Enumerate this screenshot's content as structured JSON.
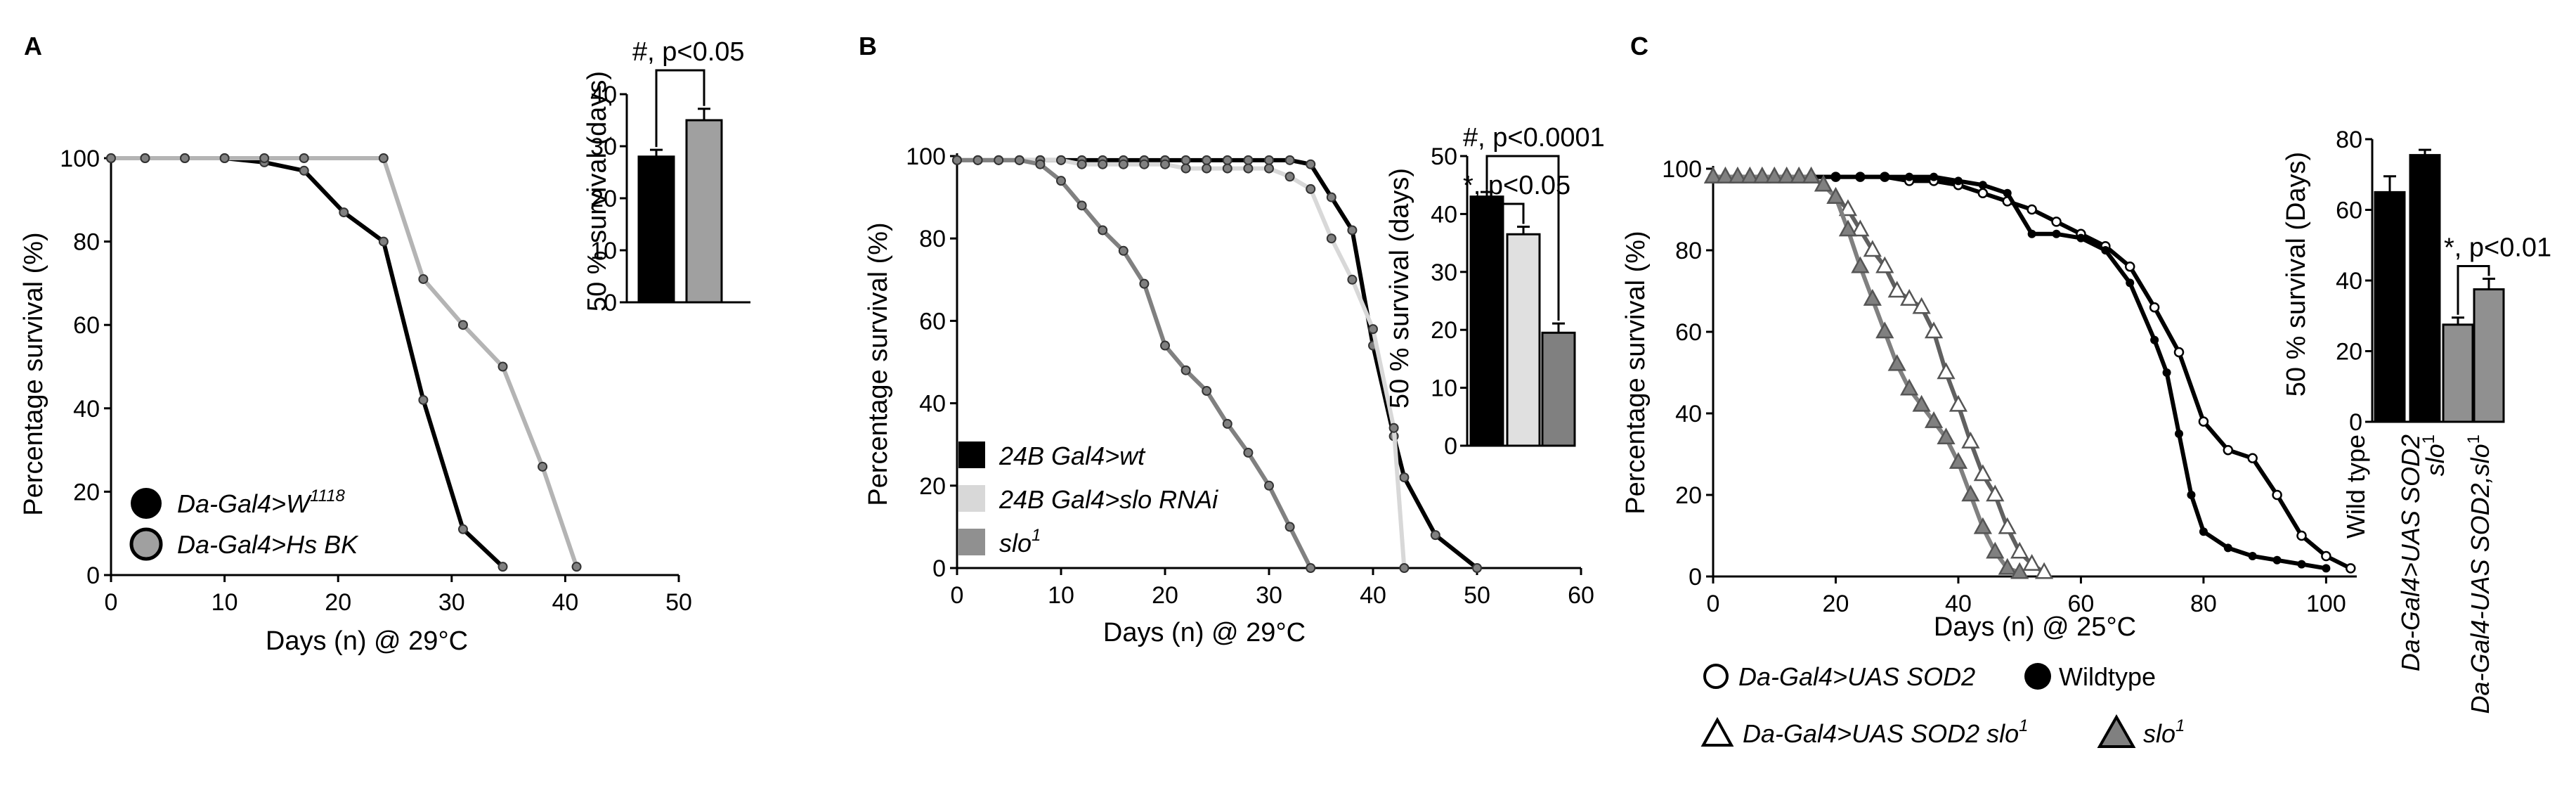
{
  "colors": {
    "black": "#000000",
    "dark_gray": "#808080",
    "light_gray": "#b4b4b4",
    "very_light_gray": "#d8d8d8",
    "white": "#ffffff"
  },
  "chart_data": [
    {
      "panel": "A",
      "type": "line",
      "title": "",
      "xlabel": "Days (n) @ 29°C",
      "ylabel": "Percentage survival (%)",
      "xlim": [
        0,
        50
      ],
      "ylim": [
        0,
        100
      ],
      "xticks": [
        0,
        10,
        20,
        30,
        40,
        50
      ],
      "yticks": [
        0,
        20,
        40,
        60,
        80,
        100
      ],
      "series": [
        {
          "name": "Da-Gal4>W",
          "name_sup": "1118",
          "color": "#000000",
          "marker_fill": "#808080",
          "x": [
            0,
            3,
            6.5,
            10,
            13.5,
            17,
            20.5,
            24,
            27.5,
            31,
            34.5
          ],
          "y": [
            100,
            100,
            100,
            100,
            99,
            97,
            87,
            80,
            42,
            11,
            2
          ]
        },
        {
          "name": "Da-Gal4>Hs BK",
          "color": "#b4b4b4",
          "marker_fill": "#808080",
          "x": [
            0,
            3,
            6.5,
            10,
            13.5,
            17,
            24,
            27.5,
            31,
            34.5,
            38,
            41
          ],
          "y": [
            100,
            100,
            100,
            100,
            100,
            100,
            100,
            71,
            60,
            50,
            26,
            2
          ]
        }
      ],
      "inset": {
        "type": "bar",
        "ylabel": "50 % survival (days)",
        "ylim": [
          0,
          40
        ],
        "yticks": [
          0,
          10,
          20,
          30,
          40
        ],
        "categories": [
          "Da-Gal4>W1118",
          "Da-Gal4>Hs BK"
        ],
        "values": [
          28,
          35
        ],
        "errors": [
          1.3,
          2.2
        ],
        "colors": [
          "#000000",
          "#a0a0a0"
        ],
        "annotations": [
          {
            "text": "#, p<0.05",
            "from": 0,
            "to": 1
          }
        ]
      }
    },
    {
      "panel": "B",
      "type": "line",
      "title": "",
      "xlabel": "Days (n) @ 29°C",
      "ylabel": "Percentage survival (%)",
      "xlim": [
        0,
        60
      ],
      "ylim": [
        0,
        100
      ],
      "xticks": [
        0,
        10,
        20,
        30,
        40,
        50,
        60
      ],
      "yticks": [
        0,
        20,
        40,
        60,
        80,
        100
      ],
      "series": [
        {
          "name": "24B Gal4>wt",
          "color": "#000000",
          "x": [
            0,
            2,
            4,
            6,
            8,
            10,
            12,
            14,
            16,
            18,
            20,
            22,
            24,
            26,
            28,
            30,
            32,
            34,
            36,
            38,
            40,
            42,
            43,
            46,
            50
          ],
          "y": [
            99,
            99,
            99,
            99,
            99,
            99,
            99,
            99,
            99,
            99,
            99,
            99,
            99,
            99,
            99,
            99,
            99,
            98,
            90,
            82,
            54,
            32,
            22,
            8,
            0
          ]
        },
        {
          "name": "24B Gal4>slo RNAi",
          "color": "#d8d8d8",
          "x": [
            0,
            2,
            4,
            6,
            8,
            10,
            12,
            14,
            16,
            18,
            20,
            22,
            24,
            26,
            28,
            30,
            32,
            34,
            36,
            38,
            40,
            42,
            43
          ],
          "y": [
            99,
            99,
            99,
            99,
            99,
            99,
            98,
            98,
            98,
            98,
            98,
            97,
            97,
            97,
            97,
            97,
            95,
            92,
            80,
            70,
            58,
            34,
            0
          ]
        },
        {
          "name": "slo",
          "name_sup": "1",
          "color": "#808080",
          "x": [
            0,
            2,
            4,
            6,
            8,
            10,
            12,
            14,
            16,
            18,
            20,
            22,
            24,
            26,
            28,
            30,
            32,
            34
          ],
          "y": [
            99,
            99,
            99,
            99,
            98,
            94,
            88,
            82,
            77,
            69,
            54,
            48,
            43,
            35,
            28,
            20,
            10,
            0
          ]
        }
      ],
      "inset": {
        "type": "bar",
        "ylabel": "50 % survival (days)",
        "ylim": [
          0,
          50
        ],
        "yticks": [
          0,
          10,
          20,
          30,
          40,
          50
        ],
        "categories": [
          "24B Gal4>wt",
          "24B Gal4>slo RNAi",
          "slo1"
        ],
        "values": [
          43,
          36.5,
          19.5
        ],
        "errors": [
          0.8,
          1.3,
          1.6
        ],
        "colors": [
          "#000000",
          "#e0e0e0",
          "#808080"
        ],
        "annotations": [
          {
            "text": "*, p<0.05",
            "from": 0,
            "to": 1
          },
          {
            "text": "#, p<0.0001",
            "from": 0,
            "to": 2
          }
        ]
      }
    },
    {
      "panel": "C",
      "type": "line",
      "title": "",
      "xlabel": "Days (n) @ 25°C",
      "ylabel": "Percentage survival (%)",
      "xlim": [
        0,
        105
      ],
      "ylim": [
        0,
        100
      ],
      "xticks": [
        0,
        20,
        40,
        60,
        80,
        100
      ],
      "yticks": [
        0,
        20,
        40,
        60,
        80,
        100
      ],
      "series": [
        {
          "name": "Da-Gal4>UAS SOD2",
          "color": "#000000",
          "marker": "open-circle",
          "x": [
            0,
            4,
            8,
            12,
            16,
            20,
            24,
            28,
            32,
            36,
            40,
            44,
            48,
            52,
            56,
            60,
            64,
            68,
            72,
            76,
            80,
            84,
            88,
            92,
            96,
            100,
            104
          ],
          "y": [
            98,
            98,
            98,
            98,
            98,
            98,
            98,
            98,
            97,
            97,
            96,
            94,
            92,
            90,
            87,
            84,
            81,
            76,
            66,
            55,
            38,
            31,
            29,
            20,
            10,
            5,
            2
          ]
        },
        {
          "name": "Wildtype",
          "color": "#000000",
          "marker": "filled-circle",
          "x": [
            0,
            4,
            8,
            12,
            16,
            20,
            24,
            28,
            32,
            36,
            40,
            44,
            48,
            52,
            56,
            60,
            64,
            68,
            72,
            74,
            76,
            78,
            80,
            84,
            88,
            92,
            96,
            100
          ],
          "y": [
            98,
            98,
            98,
            98,
            98,
            98,
            98,
            98,
            98,
            98,
            97,
            96,
            94,
            84,
            84,
            83,
            80,
            72,
            58,
            50,
            35,
            20,
            11,
            7,
            5,
            4,
            3,
            2
          ]
        },
        {
          "name": "Da-Gal4>UAS SOD2 slo",
          "name_sup": "1",
          "color": "#606060",
          "marker": "open-triangle",
          "x": [
            0,
            2,
            4,
            6,
            8,
            10,
            12,
            14,
            16,
            18,
            20,
            22,
            24,
            26,
            28,
            30,
            32,
            34,
            36,
            38,
            40,
            42,
            44,
            46,
            48,
            50,
            52,
            54
          ],
          "y": [
            98,
            98,
            98,
            98,
            98,
            98,
            98,
            98,
            98,
            96,
            93,
            90,
            85,
            80,
            76,
            70,
            68,
            66,
            60,
            50,
            42,
            33,
            25,
            20,
            12,
            6,
            3,
            1
          ]
        },
        {
          "name": "slo",
          "name_sup": "1",
          "color": "#808080",
          "marker": "filled-triangle",
          "x": [
            0,
            2,
            4,
            6,
            8,
            10,
            12,
            14,
            16,
            18,
            20,
            22,
            24,
            26,
            28,
            30,
            32,
            34,
            36,
            38,
            40,
            42,
            44,
            46,
            48,
            50
          ],
          "y": [
            98,
            98,
            98,
            98,
            98,
            98,
            98,
            98,
            98,
            96,
            93,
            85,
            76,
            68,
            60,
            52,
            46,
            42,
            38,
            34,
            28,
            20,
            12,
            6,
            2,
            1
          ]
        }
      ],
      "inset": {
        "type": "bar",
        "ylabel": "50 % survival (Days)",
        "ylim": [
          0,
          80
        ],
        "yticks": [
          0,
          20,
          40,
          60,
          80
        ],
        "categories": [
          "Wild type",
          "Da-Gal4>UAS SOD2",
          "slo1",
          "Da-Gal4-UAS SOD2,slo1"
        ],
        "category_labels": [
          {
            "parts": [
              {
                "t": "Wild type"
              }
            ]
          },
          {
            "parts": [
              {
                "t": "Da-Gal4>UAS SOD2",
                "i": true
              }
            ]
          },
          {
            "parts": [
              {
                "t": "slo",
                "i": true
              },
              {
                "t": "1",
                "sup": true
              }
            ]
          },
          {
            "parts": [
              {
                "t": "Da-Gal4-UAS SOD2,slo",
                "i": true
              },
              {
                "t": "1",
                "sup": true
              }
            ]
          }
        ],
        "values": [
          65,
          75.5,
          27.5,
          37.5
        ],
        "errors": [
          4.5,
          1.5,
          2.0,
          3.0
        ],
        "colors": [
          "#000000",
          "#000000",
          "#909090",
          "#909090"
        ],
        "annotations": [
          {
            "text": "*, p<0.01",
            "from": 2,
            "to": 3
          }
        ]
      }
    }
  ]
}
